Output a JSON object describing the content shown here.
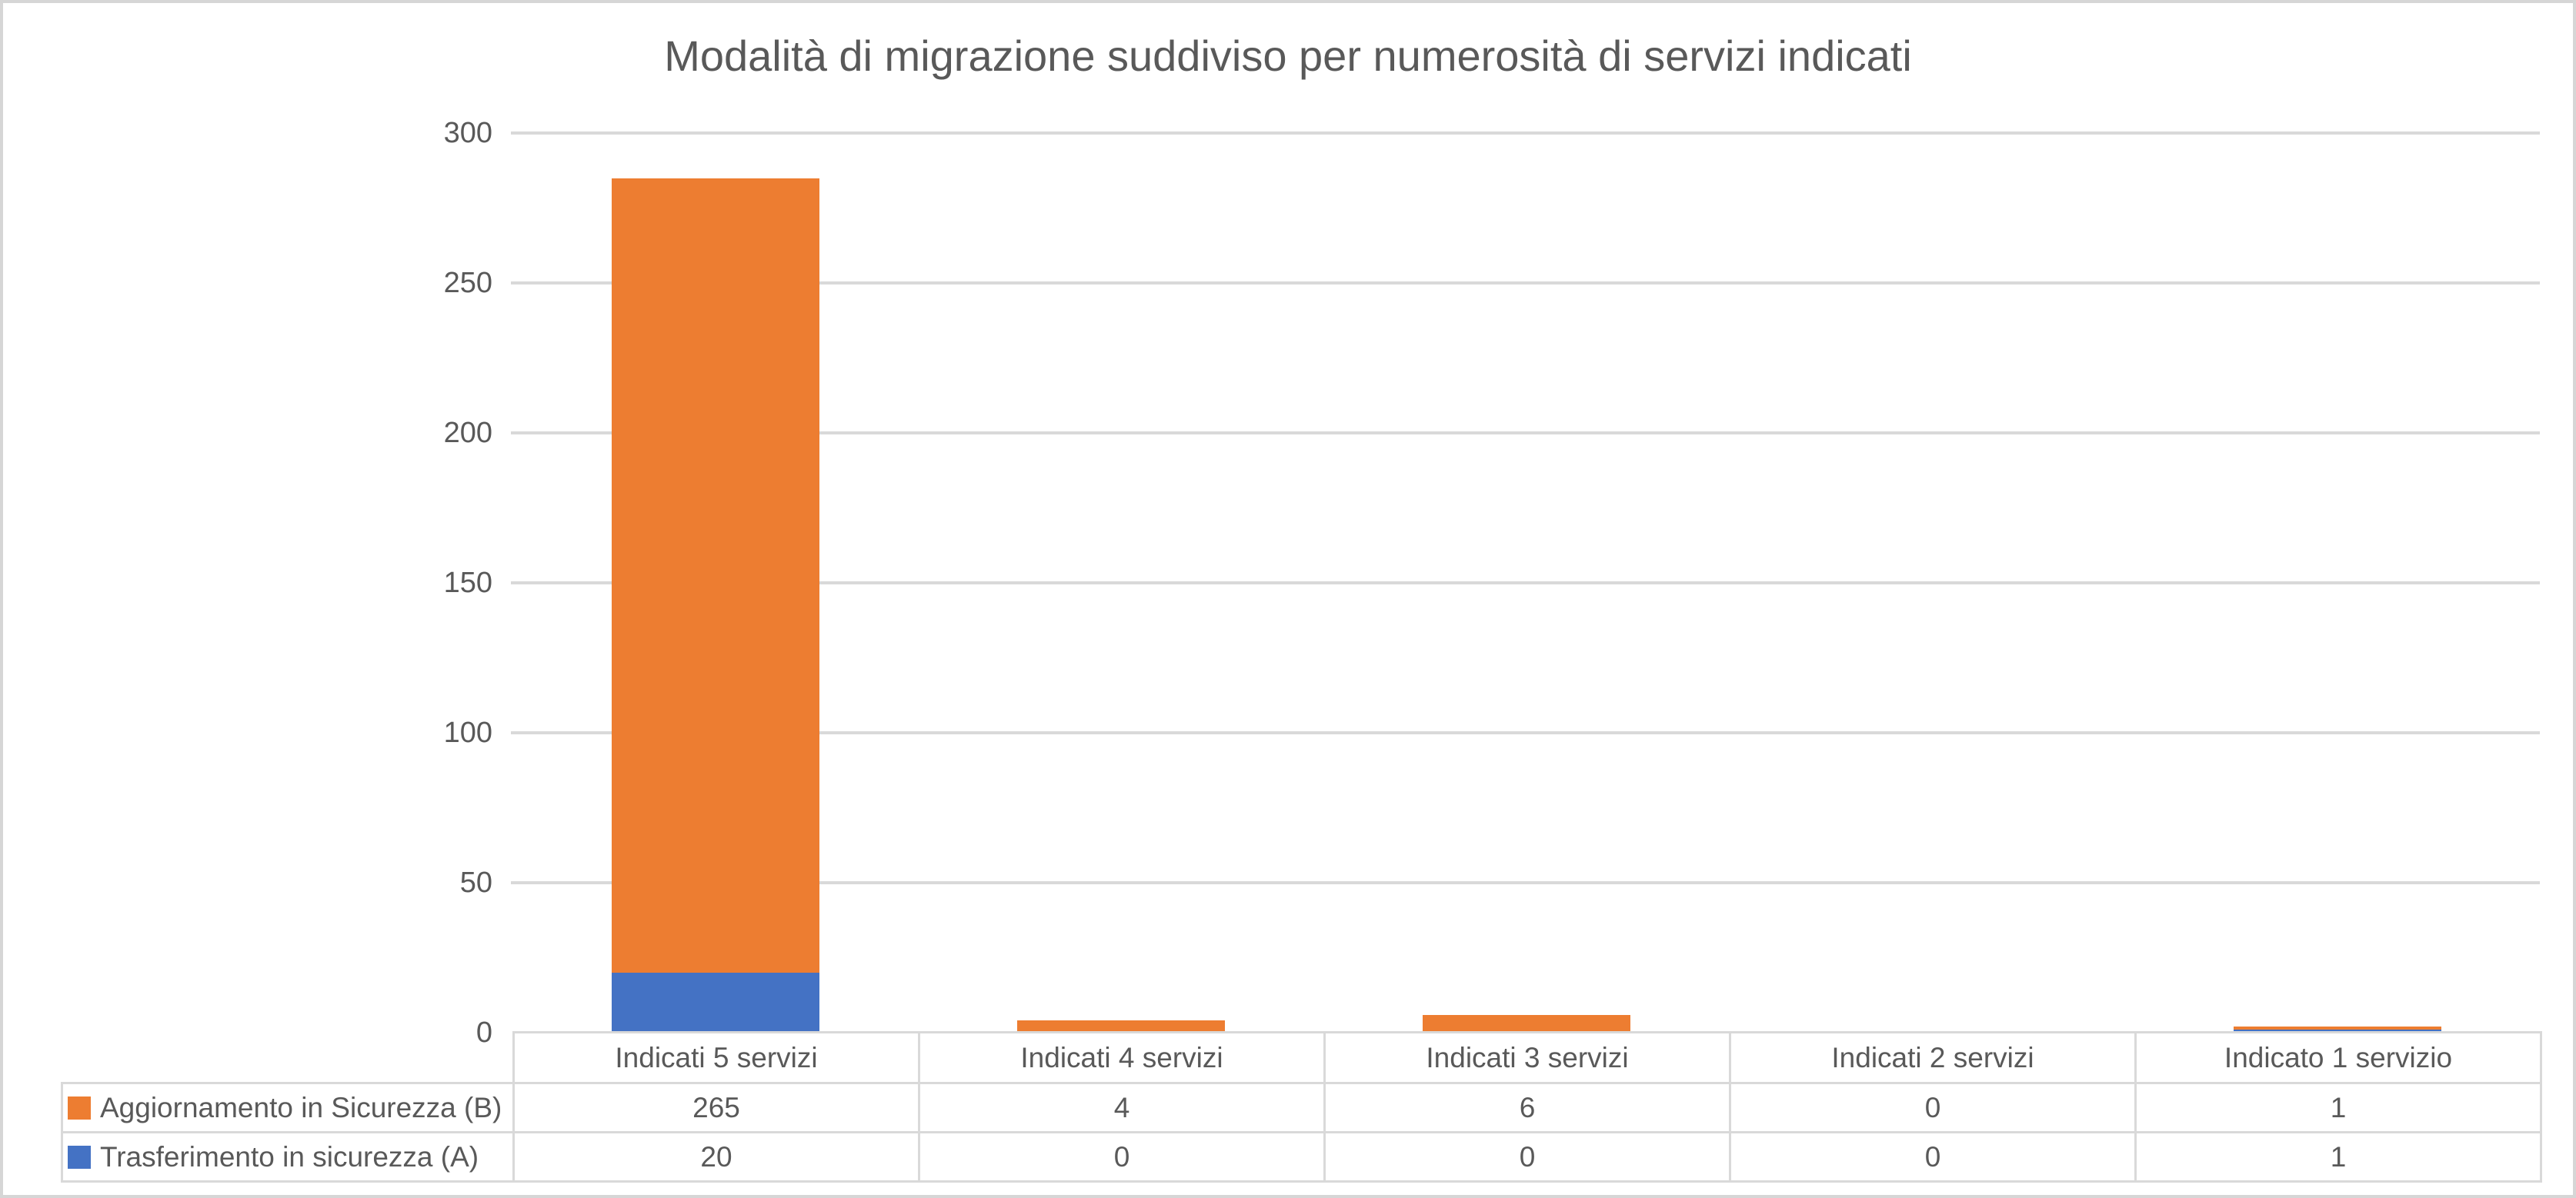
{
  "chart_data": {
    "type": "bar",
    "stacked": true,
    "title": "Modalità di migrazione suddiviso per numerosità di servizi indicati",
    "categories": [
      "Indicati 5 servizi",
      "Indicati 4 servizi",
      "Indicati 3 servizi",
      "Indicati 2 servizi",
      "Indicato 1 servizio"
    ],
    "series": [
      {
        "name": "Trasferimento in sicurezza (A)",
        "color": "#4472C4",
        "values": [
          20,
          0,
          0,
          0,
          1
        ]
      },
      {
        "name": "Aggiornamento in Sicurezza (B)",
        "color": "#ED7D31",
        "values": [
          265,
          4,
          6,
          0,
          1
        ]
      }
    ],
    "ylim": [
      0,
      300
    ],
    "yticks": [
      0,
      50,
      100,
      150,
      200,
      250,
      300
    ],
    "grid": true,
    "legend_position": "data-table-left",
    "table_series_display_order": [
      1,
      0
    ],
    "xlabel": "",
    "ylabel": ""
  },
  "colors": {
    "series_trasferimento_blue": "#4472C4",
    "series_aggiornamento_orange": "#ED7D31",
    "gridline": "#D9D9D9",
    "table_border": "#D9D9D9",
    "text": "#595959",
    "background": "#FFFFFF",
    "frame_border": "#D6D6D6"
  }
}
